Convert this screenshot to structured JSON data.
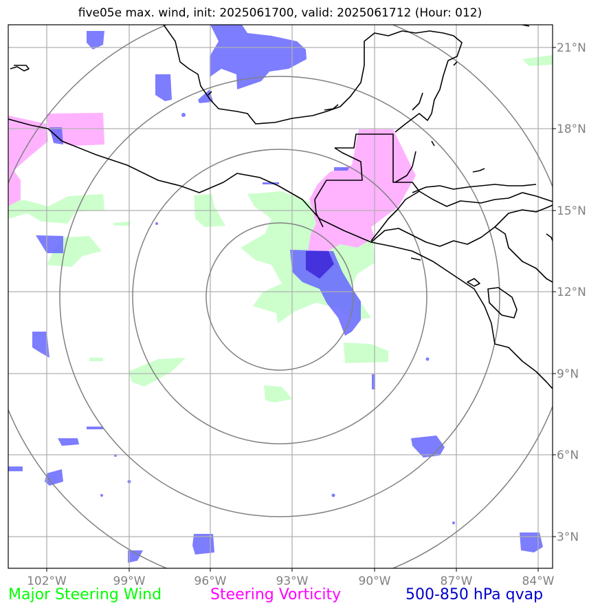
{
  "title": "five05e max. wind, init: 2025061700, valid: 2025061712 (Hour: 012)",
  "legend": {
    "wind": {
      "label": "Major Steering Wind",
      "color": "#00ff00"
    },
    "vorticity": {
      "label": "Steering Vorticity",
      "color": "#ff00ff"
    },
    "qvap": {
      "label": "500-850 hPa qvap",
      "color": "#0000cc"
    }
  },
  "axes": {
    "lon_labels": [
      "102°W",
      "99°W",
      "96°W",
      "93°W",
      "90°W",
      "87°W",
      "84°W"
    ],
    "lat_labels": [
      "21°N",
      "18°N",
      "15°N",
      "12°N",
      "9°N",
      "6°N",
      "3°N"
    ]
  },
  "colors": {
    "wind_fill": "#ccffcc",
    "vorticity_fill": "#ffb3ff",
    "qvap_fill": "#6666ff",
    "qvap_dense": "#4433dd",
    "grid": "#b0b0b0",
    "range_rings": "#808080",
    "coastline": "#000000"
  }
}
